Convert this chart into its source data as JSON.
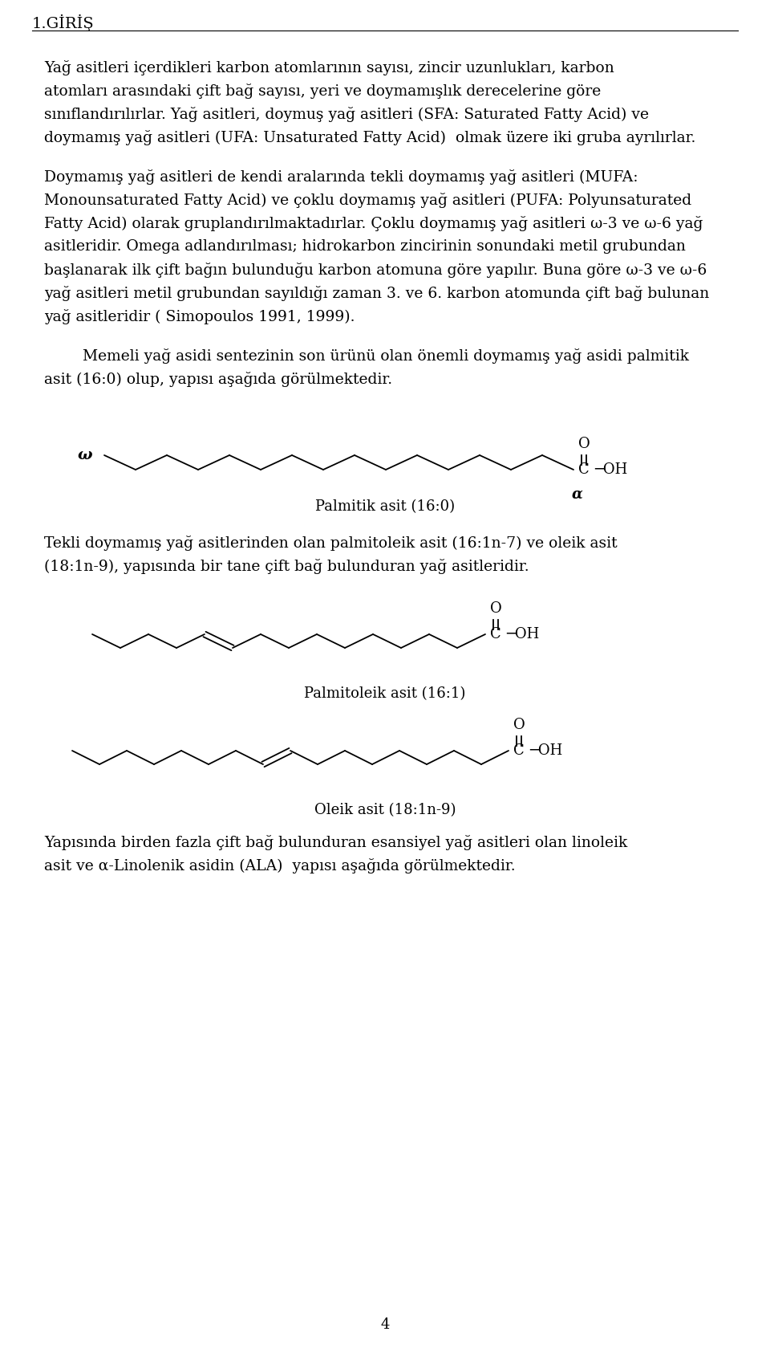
{
  "bg_color": "#ffffff",
  "text_color": "#000000",
  "header": "1.GİRİŞ",
  "page_number": "4",
  "caption_palmitic": "Palmitik asit (16:0)",
  "caption_palmitoleic": "Palmitoleik asit (16:1)",
  "caption_oleic": "Oleik asit (18:1n-9)",
  "font_size_body": 13.5,
  "font_size_header": 14,
  "font_size_caption": 13.0,
  "font_size_chem": 13.0
}
